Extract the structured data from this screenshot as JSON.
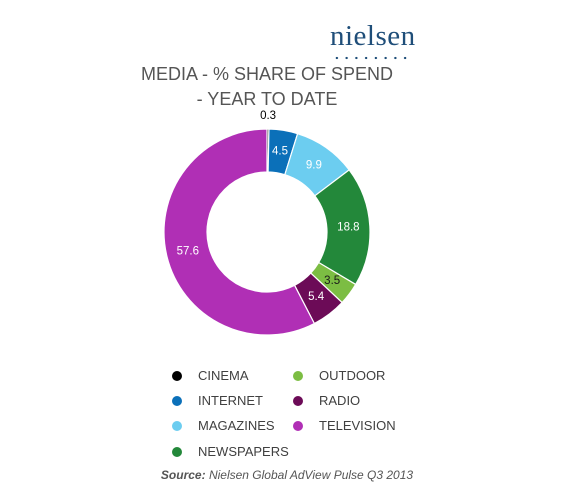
{
  "brand": {
    "logo_text": "nielsen"
  },
  "chart_data": {
    "type": "pie",
    "title_line1": "MEDIA - % SHARE OF SPEND",
    "title_line2": "-  YEAR TO DATE",
    "slices": [
      {
        "label": "CINEMA",
        "value": 0.3,
        "display": "0.3",
        "color": "#000000",
        "label_color": "#000000"
      },
      {
        "label": "INTERNET",
        "value": 4.5,
        "display": "4.5",
        "color": "#0b70b9",
        "label_color": "#ffffff"
      },
      {
        "label": "MAGAZINES",
        "value": 9.9,
        "display": "9.9",
        "color": "#6ccdf0",
        "label_color": "#ffffff"
      },
      {
        "label": "NEWSPAPERS",
        "value": 18.8,
        "display": "18.8",
        "color": "#23883a",
        "label_color": "#ffffff"
      },
      {
        "label": "OUTDOOR",
        "value": 3.5,
        "display": "3.5",
        "color": "#7cbd43",
        "label_color": "#1a1a1a"
      },
      {
        "label": "RADIO",
        "value": 5.4,
        "display": "5.4",
        "color": "#6c0b57",
        "label_color": "#ffffff"
      },
      {
        "label": "TELEVISION",
        "value": 57.6,
        "display": "57.6",
        "color": "#b02fb5",
        "label_color": "#ffffff"
      }
    ],
    "legend_order": [
      "CINEMA",
      "OUTDOOR",
      "INTERNET",
      "RADIO",
      "MAGAZINES",
      "TELEVISION",
      "NEWSPAPERS"
    ]
  },
  "source": {
    "label": "Source:",
    "text": "Nielsen Global AdView Pulse Q3 2013"
  }
}
